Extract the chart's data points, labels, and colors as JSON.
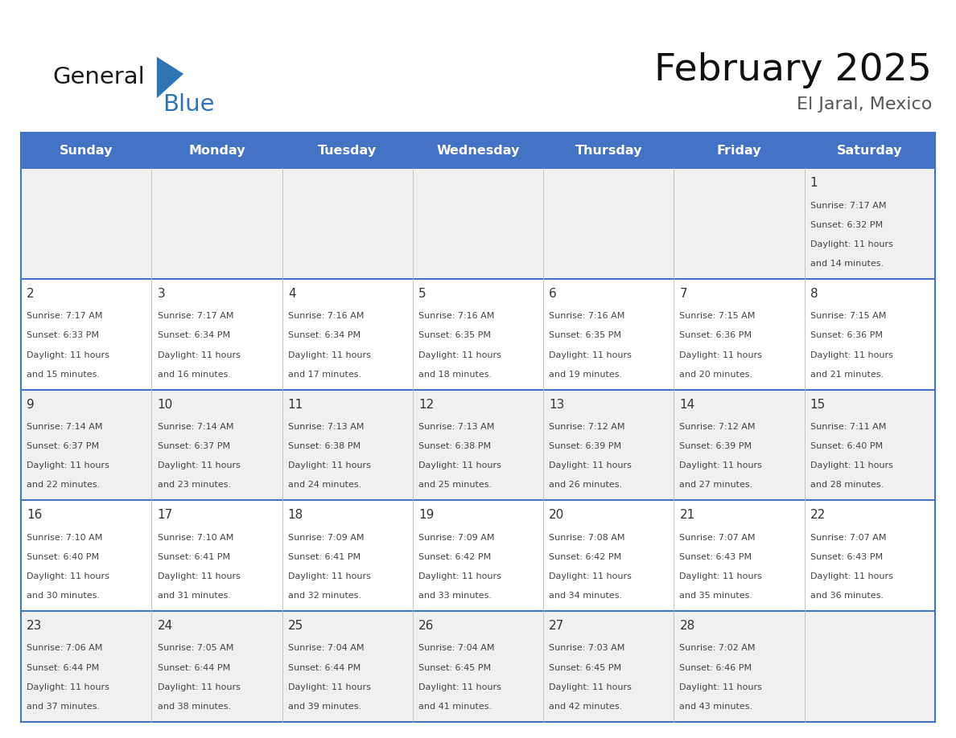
{
  "title": "February 2025",
  "subtitle": "El Jaral, Mexico",
  "days_of_week": [
    "Sunday",
    "Monday",
    "Tuesday",
    "Wednesday",
    "Thursday",
    "Friday",
    "Saturday"
  ],
  "header_bg_color": "#4472C4",
  "header_text_color": "#FFFFFF",
  "cell_bg_color_light": "#F0F0F0",
  "cell_bg_color_white": "#FFFFFF",
  "grid_line_color": "#4472C4",
  "day_number_color": "#333333",
  "cell_text_color": "#444444",
  "title_color": "#111111",
  "subtitle_color": "#555555",
  "logo_general_color": "#1a1a1a",
  "logo_blue_color": "#2E75B6",
  "calendar_data": [
    {
      "day": 1,
      "col": 6,
      "row": 0,
      "sunrise": "7:17 AM",
      "sunset": "6:32 PM",
      "daylight_hours": 11,
      "daylight_minutes": 14
    },
    {
      "day": 2,
      "col": 0,
      "row": 1,
      "sunrise": "7:17 AM",
      "sunset": "6:33 PM",
      "daylight_hours": 11,
      "daylight_minutes": 15
    },
    {
      "day": 3,
      "col": 1,
      "row": 1,
      "sunrise": "7:17 AM",
      "sunset": "6:34 PM",
      "daylight_hours": 11,
      "daylight_minutes": 16
    },
    {
      "day": 4,
      "col": 2,
      "row": 1,
      "sunrise": "7:16 AM",
      "sunset": "6:34 PM",
      "daylight_hours": 11,
      "daylight_minutes": 17
    },
    {
      "day": 5,
      "col": 3,
      "row": 1,
      "sunrise": "7:16 AM",
      "sunset": "6:35 PM",
      "daylight_hours": 11,
      "daylight_minutes": 18
    },
    {
      "day": 6,
      "col": 4,
      "row": 1,
      "sunrise": "7:16 AM",
      "sunset": "6:35 PM",
      "daylight_hours": 11,
      "daylight_minutes": 19
    },
    {
      "day": 7,
      "col": 5,
      "row": 1,
      "sunrise": "7:15 AM",
      "sunset": "6:36 PM",
      "daylight_hours": 11,
      "daylight_minutes": 20
    },
    {
      "day": 8,
      "col": 6,
      "row": 1,
      "sunrise": "7:15 AM",
      "sunset": "6:36 PM",
      "daylight_hours": 11,
      "daylight_minutes": 21
    },
    {
      "day": 9,
      "col": 0,
      "row": 2,
      "sunrise": "7:14 AM",
      "sunset": "6:37 PM",
      "daylight_hours": 11,
      "daylight_minutes": 22
    },
    {
      "day": 10,
      "col": 1,
      "row": 2,
      "sunrise": "7:14 AM",
      "sunset": "6:37 PM",
      "daylight_hours": 11,
      "daylight_minutes": 23
    },
    {
      "day": 11,
      "col": 2,
      "row": 2,
      "sunrise": "7:13 AM",
      "sunset": "6:38 PM",
      "daylight_hours": 11,
      "daylight_minutes": 24
    },
    {
      "day": 12,
      "col": 3,
      "row": 2,
      "sunrise": "7:13 AM",
      "sunset": "6:38 PM",
      "daylight_hours": 11,
      "daylight_minutes": 25
    },
    {
      "day": 13,
      "col": 4,
      "row": 2,
      "sunrise": "7:12 AM",
      "sunset": "6:39 PM",
      "daylight_hours": 11,
      "daylight_minutes": 26
    },
    {
      "day": 14,
      "col": 5,
      "row": 2,
      "sunrise": "7:12 AM",
      "sunset": "6:39 PM",
      "daylight_hours": 11,
      "daylight_minutes": 27
    },
    {
      "day": 15,
      "col": 6,
      "row": 2,
      "sunrise": "7:11 AM",
      "sunset": "6:40 PM",
      "daylight_hours": 11,
      "daylight_minutes": 28
    },
    {
      "day": 16,
      "col": 0,
      "row": 3,
      "sunrise": "7:10 AM",
      "sunset": "6:40 PM",
      "daylight_hours": 11,
      "daylight_minutes": 30
    },
    {
      "day": 17,
      "col": 1,
      "row": 3,
      "sunrise": "7:10 AM",
      "sunset": "6:41 PM",
      "daylight_hours": 11,
      "daylight_minutes": 31
    },
    {
      "day": 18,
      "col": 2,
      "row": 3,
      "sunrise": "7:09 AM",
      "sunset": "6:41 PM",
      "daylight_hours": 11,
      "daylight_minutes": 32
    },
    {
      "day": 19,
      "col": 3,
      "row": 3,
      "sunrise": "7:09 AM",
      "sunset": "6:42 PM",
      "daylight_hours": 11,
      "daylight_minutes": 33
    },
    {
      "day": 20,
      "col": 4,
      "row": 3,
      "sunrise": "7:08 AM",
      "sunset": "6:42 PM",
      "daylight_hours": 11,
      "daylight_minutes": 34
    },
    {
      "day": 21,
      "col": 5,
      "row": 3,
      "sunrise": "7:07 AM",
      "sunset": "6:43 PM",
      "daylight_hours": 11,
      "daylight_minutes": 35
    },
    {
      "day": 22,
      "col": 6,
      "row": 3,
      "sunrise": "7:07 AM",
      "sunset": "6:43 PM",
      "daylight_hours": 11,
      "daylight_minutes": 36
    },
    {
      "day": 23,
      "col": 0,
      "row": 4,
      "sunrise": "7:06 AM",
      "sunset": "6:44 PM",
      "daylight_hours": 11,
      "daylight_minutes": 37
    },
    {
      "day": 24,
      "col": 1,
      "row": 4,
      "sunrise": "7:05 AM",
      "sunset": "6:44 PM",
      "daylight_hours": 11,
      "daylight_minutes": 38
    },
    {
      "day": 25,
      "col": 2,
      "row": 4,
      "sunrise": "7:04 AM",
      "sunset": "6:44 PM",
      "daylight_hours": 11,
      "daylight_minutes": 39
    },
    {
      "day": 26,
      "col": 3,
      "row": 4,
      "sunrise": "7:04 AM",
      "sunset": "6:45 PM",
      "daylight_hours": 11,
      "daylight_minutes": 41
    },
    {
      "day": 27,
      "col": 4,
      "row": 4,
      "sunrise": "7:03 AM",
      "sunset": "6:45 PM",
      "daylight_hours": 11,
      "daylight_minutes": 42
    },
    {
      "day": 28,
      "col": 5,
      "row": 4,
      "sunrise": "7:02 AM",
      "sunset": "6:46 PM",
      "daylight_hours": 11,
      "daylight_minutes": 43
    }
  ]
}
